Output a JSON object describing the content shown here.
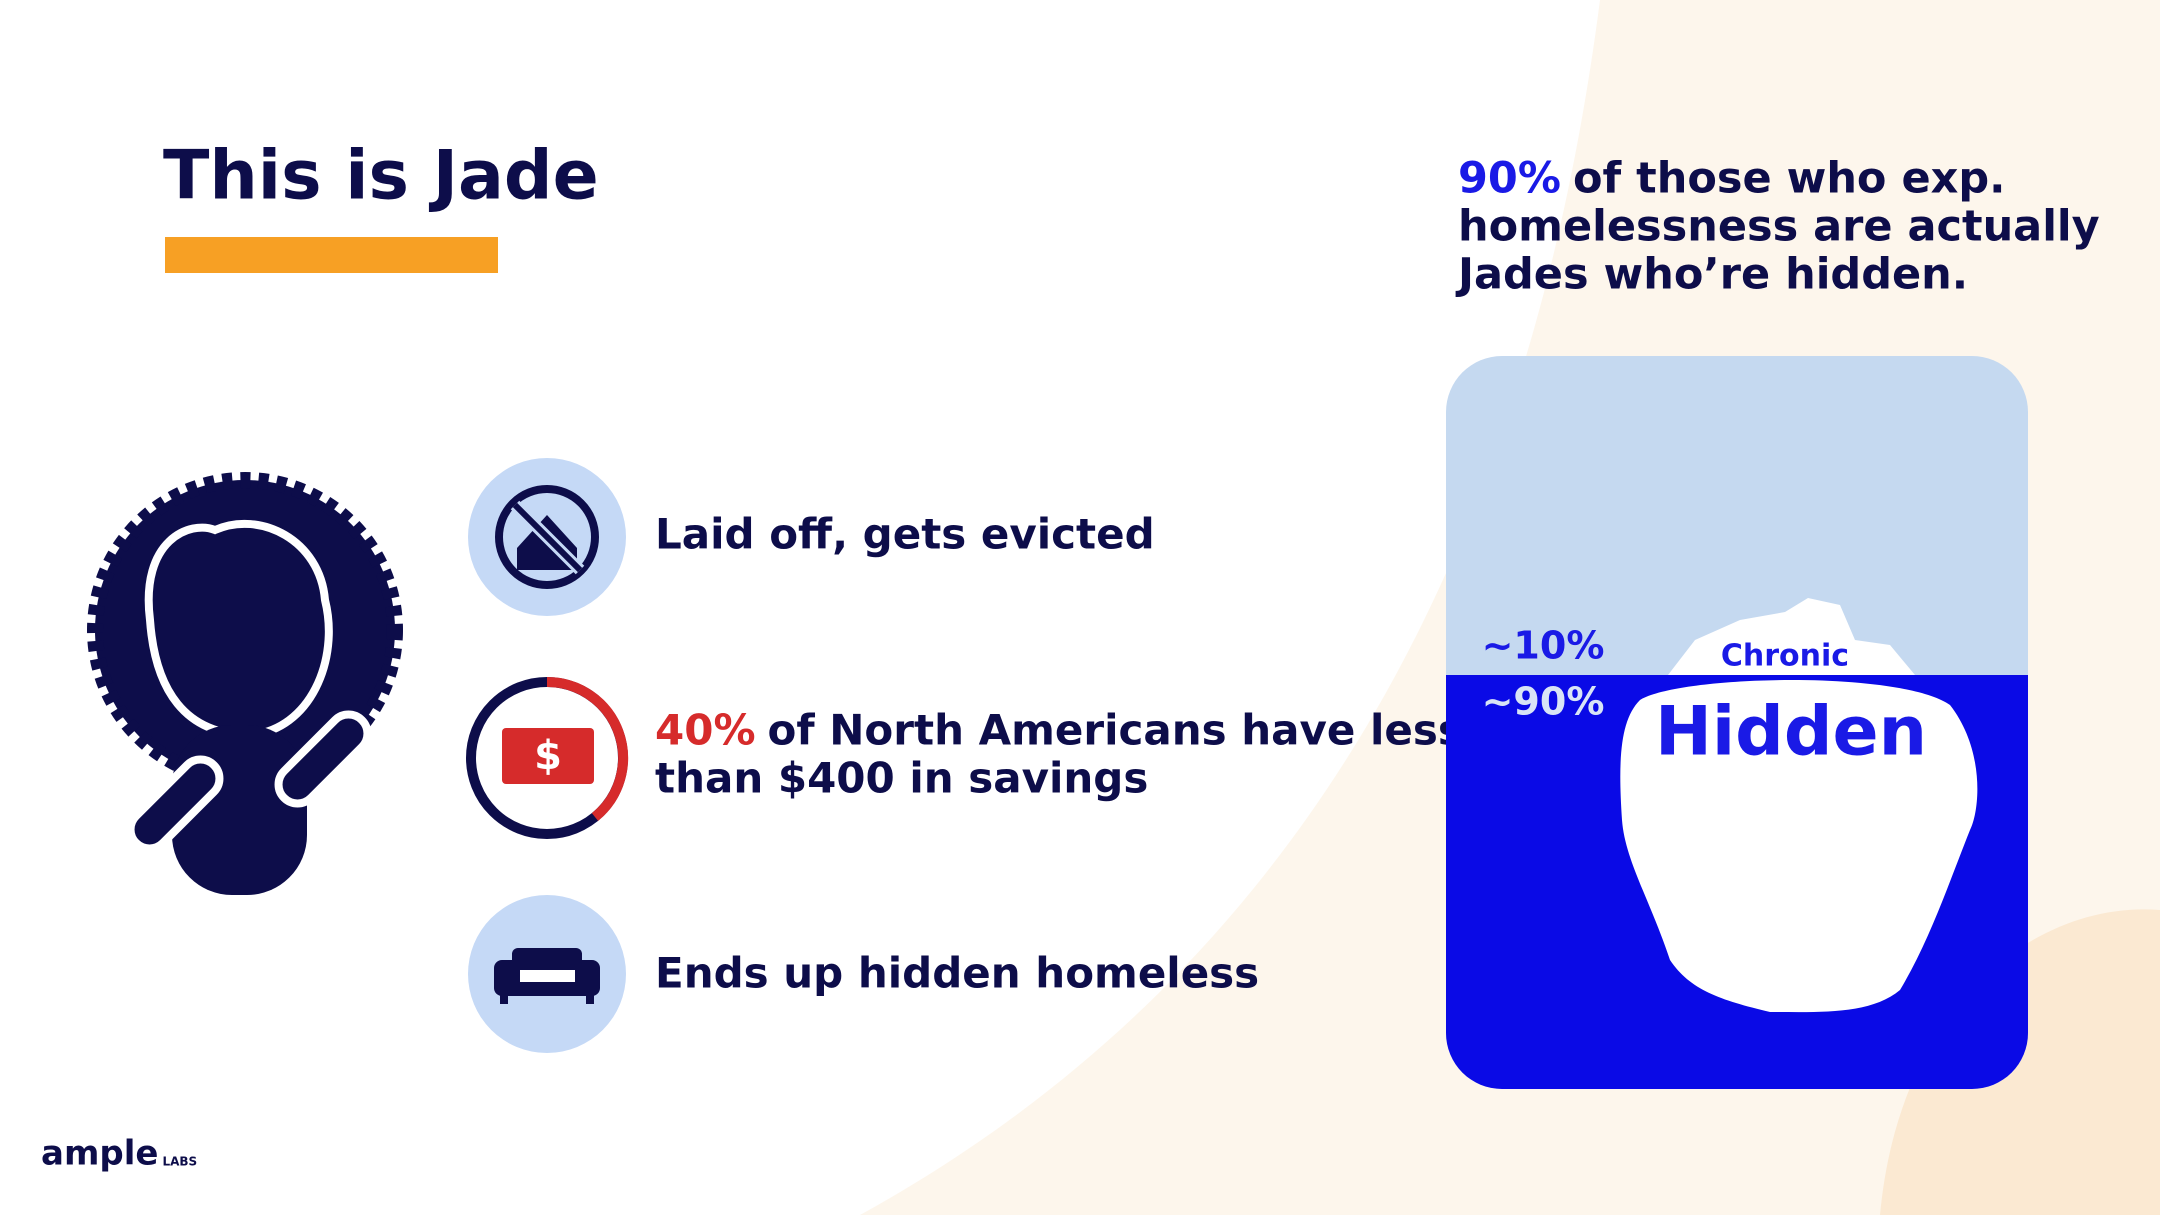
{
  "header": {
    "title": "This is Jade"
  },
  "steps": [
    {
      "lines": [
        "Laid off, gets evicted"
      ]
    },
    {
      "highlight": "40%",
      "lines": [
        "of North Americans have less",
        "than $400 in savings"
      ]
    },
    {
      "lines": [
        "Ends up hidden homeless"
      ]
    }
  ],
  "iceberg": {
    "caption_highlight": "90%",
    "caption_lines": [
      "of those who exp.",
      "homelessness are actually",
      "Jades who’re hidden."
    ],
    "above_label": "~10%",
    "below_label": "~90%",
    "tip_label": "Chronic",
    "body_label": "Hidden"
  },
  "logo": {
    "brand": "ample",
    "sub": "LABS"
  }
}
